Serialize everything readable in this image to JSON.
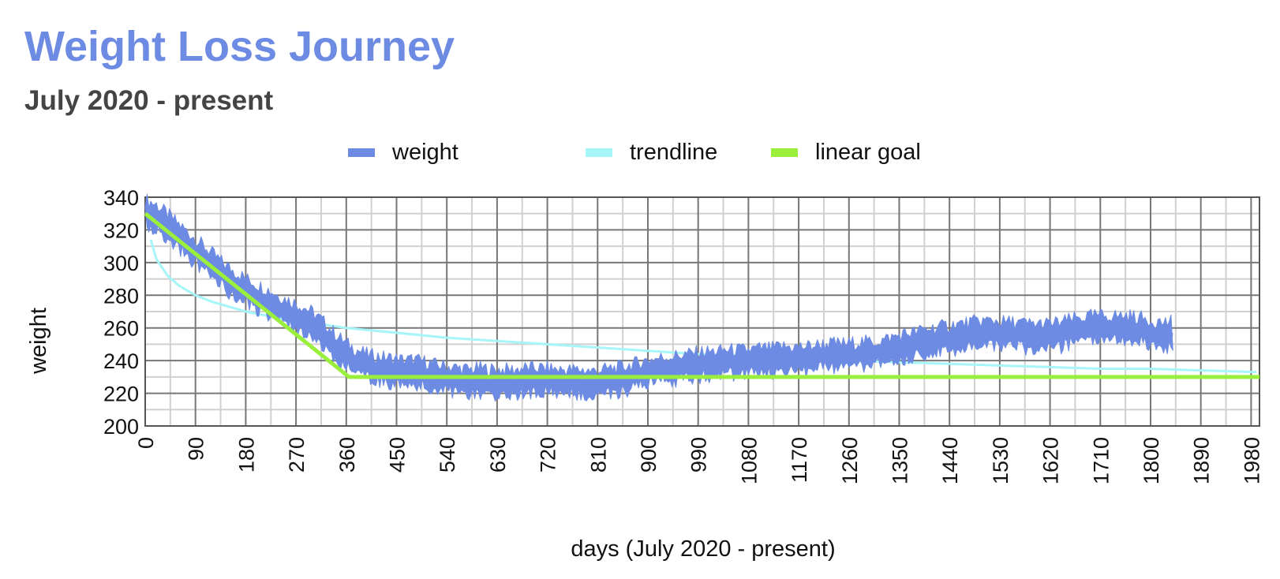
{
  "chart_data": {
    "type": "line",
    "title": "Weight Loss Journey",
    "subtitle": "July 2020 - present",
    "xlabel": "days (July 2020 - present)",
    "ylabel": "weight",
    "xlim": [
      0,
      1995
    ],
    "ylim": [
      200,
      340
    ],
    "x_ticks": [
      0,
      90,
      180,
      270,
      360,
      450,
      540,
      630,
      720,
      810,
      900,
      990,
      1080,
      1170,
      1260,
      1350,
      1440,
      1530,
      1620,
      1710,
      1800,
      1890,
      1980
    ],
    "y_ticks": [
      200,
      220,
      240,
      260,
      280,
      300,
      320,
      340
    ],
    "grid": true,
    "legend_position": "top",
    "series": [
      {
        "name": "weight",
        "color": "#6d8be3",
        "points": [
          [
            0,
            331
          ],
          [
            20,
            328
          ],
          [
            40,
            322
          ],
          [
            60,
            316
          ],
          [
            80,
            310
          ],
          [
            100,
            304
          ],
          [
            120,
            298
          ],
          [
            140,
            292
          ],
          [
            160,
            287
          ],
          [
            180,
            283
          ],
          [
            200,
            279
          ],
          [
            220,
            276
          ],
          [
            240,
            272
          ],
          [
            260,
            269
          ],
          [
            280,
            266
          ],
          [
            300,
            262
          ],
          [
            320,
            256
          ],
          [
            340,
            249
          ],
          [
            360,
            243
          ],
          [
            380,
            239
          ],
          [
            400,
            236
          ],
          [
            420,
            235
          ],
          [
            440,
            234
          ],
          [
            460,
            233
          ],
          [
            480,
            233
          ],
          [
            500,
            232
          ],
          [
            520,
            230
          ],
          [
            540,
            229
          ],
          [
            560,
            228
          ],
          [
            580,
            227
          ],
          [
            600,
            228
          ],
          [
            620,
            227
          ],
          [
            640,
            227
          ],
          [
            660,
            227
          ],
          [
            680,
            228
          ],
          [
            700,
            228
          ],
          [
            720,
            228
          ],
          [
            740,
            227
          ],
          [
            760,
            227
          ],
          [
            780,
            227
          ],
          [
            800,
            226
          ],
          [
            820,
            227
          ],
          [
            840,
            228
          ],
          [
            860,
            229
          ],
          [
            880,
            231
          ],
          [
            900,
            233
          ],
          [
            920,
            234
          ],
          [
            940,
            235
          ],
          [
            960,
            236
          ],
          [
            980,
            237
          ],
          [
            1000,
            238
          ],
          [
            1020,
            238
          ],
          [
            1040,
            239
          ],
          [
            1060,
            239
          ],
          [
            1080,
            239
          ],
          [
            1100,
            240
          ],
          [
            1120,
            240
          ],
          [
            1140,
            241
          ],
          [
            1160,
            241
          ],
          [
            1180,
            241
          ],
          [
            1200,
            242
          ],
          [
            1220,
            243
          ],
          [
            1240,
            243
          ],
          [
            1260,
            243
          ],
          [
            1280,
            244
          ],
          [
            1300,
            244
          ],
          [
            1320,
            245
          ],
          [
            1340,
            247
          ],
          [
            1360,
            249
          ],
          [
            1380,
            250
          ],
          [
            1400,
            252
          ],
          [
            1420,
            253
          ],
          [
            1440,
            254
          ],
          [
            1460,
            255
          ],
          [
            1480,
            256
          ],
          [
            1500,
            257
          ],
          [
            1520,
            257
          ],
          [
            1540,
            256
          ],
          [
            1560,
            256
          ],
          [
            1580,
            255
          ],
          [
            1600,
            255
          ],
          [
            1620,
            255
          ],
          [
            1640,
            256
          ],
          [
            1660,
            258
          ],
          [
            1680,
            259
          ],
          [
            1700,
            260
          ],
          [
            1720,
            260
          ],
          [
            1740,
            260
          ],
          [
            1760,
            260
          ],
          [
            1780,
            259
          ],
          [
            1800,
            257
          ],
          [
            1820,
            256
          ],
          [
            1840,
            256
          ]
        ]
      },
      {
        "name": "trendline",
        "color": "#a6f5f8",
        "points": [
          [
            10,
            314
          ],
          [
            20,
            302
          ],
          [
            40,
            292
          ],
          [
            60,
            286
          ],
          [
            90,
            280
          ],
          [
            120,
            276
          ],
          [
            150,
            273
          ],
          [
            180,
            270
          ],
          [
            240,
            266
          ],
          [
            300,
            263
          ],
          [
            360,
            260
          ],
          [
            450,
            257
          ],
          [
            540,
            254
          ],
          [
            630,
            252
          ],
          [
            720,
            250
          ],
          [
            810,
            248
          ],
          [
            900,
            246
          ],
          [
            990,
            244
          ],
          [
            1080,
            243
          ],
          [
            1170,
            241
          ],
          [
            1260,
            240
          ],
          [
            1350,
            239
          ],
          [
            1440,
            238
          ],
          [
            1530,
            237
          ],
          [
            1620,
            236
          ],
          [
            1710,
            235
          ],
          [
            1800,
            235
          ],
          [
            1890,
            234
          ],
          [
            1990,
            233
          ]
        ]
      },
      {
        "name": "linear goal",
        "color": "#99ef3c",
        "points": [
          [
            0,
            330
          ],
          [
            365,
            230
          ],
          [
            1995,
            230
          ]
        ]
      }
    ]
  }
}
